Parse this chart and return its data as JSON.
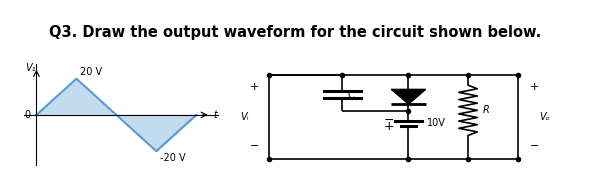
{
  "title": "Q3. Draw the output waveform for the circuit shown below.",
  "title_fontsize": 10.5,
  "title_fontweight": "bold",
  "bg_color": "#ffffff",
  "waveform": {
    "x": [
      0,
      0.25,
      0.5,
      0.75,
      1.0
    ],
    "y": [
      0,
      20,
      0,
      -20,
      0
    ],
    "color": "#5b9bd5",
    "fill_color": "#bdd7ee",
    "linewidth": 1.5,
    "peak_label": "20 V",
    "trough_label": "-20 V",
    "axis_label_y": "V₁",
    "axis_label_t": "t",
    "origin_label": "0"
  },
  "circuit": {
    "line_color": "#000000",
    "component_labels": {
      "C": "C",
      "R": "R",
      "V_bias": "10V",
      "v_i": "Vᵢ",
      "v_o": "Vₒ"
    }
  }
}
